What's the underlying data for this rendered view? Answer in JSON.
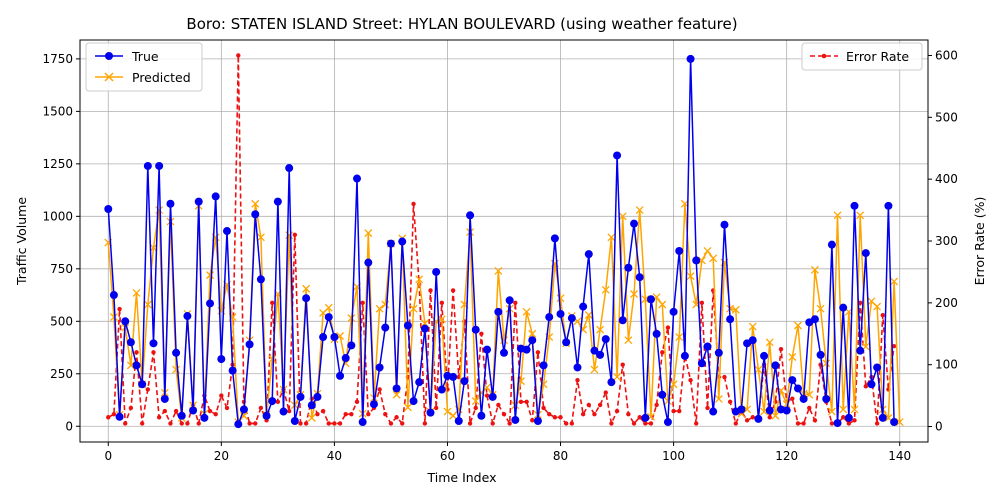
{
  "chart_data": {
    "type": "line",
    "title": "Boro: STATEN ISLAND Street: HYLAN BOULEVARD (using weather feature)",
    "xlabel": "Time Index",
    "ylabel_left": "Traffic Volume",
    "ylabel_right": "Error Rate (%)",
    "xlim": [
      -5,
      145
    ],
    "ylim_left": [
      -75,
      1840
    ],
    "ylim_right": [
      -25,
      625
    ],
    "xticks": [
      0,
      20,
      40,
      60,
      80,
      100,
      120,
      140
    ],
    "yticks_left": [
      0,
      250,
      500,
      750,
      1000,
      1250,
      1500,
      1750
    ],
    "yticks_right": [
      0,
      100,
      200,
      300,
      400,
      500,
      600
    ],
    "grid": true,
    "legend_left": "top-left",
    "legend_right": "top-right",
    "colors": {
      "true": "#0000ee",
      "predicted": "#ffa500",
      "error": "#ee1111"
    },
    "series": [
      {
        "name": "True",
        "style": "line-circle",
        "values": [
          1035,
          625,
          45,
          500,
          400,
          290,
          200,
          1240,
          395,
          1240,
          130,
          1060,
          350,
          50,
          525,
          75,
          1070,
          40,
          585,
          1095,
          320,
          930,
          265,
          10,
          80,
          390,
          1010,
          700,
          50,
          120,
          1070,
          70,
          1230,
          25,
          140,
          610,
          100,
          140,
          425,
          520,
          425,
          240,
          325,
          385,
          1180,
          20,
          780,
          105,
          280,
          470,
          870,
          180,
          880,
          480,
          120,
          210,
          465,
          65,
          735,
          175,
          240,
          235,
          25,
          215,
          1005,
          460,
          50,
          365,
          140,
          545,
          350,
          600,
          30,
          370,
          365,
          410,
          25,
          290,
          520,
          895,
          535,
          400,
          515,
          280,
          570,
          820,
          360,
          340,
          415,
          210,
          1290,
          505,
          755,
          965,
          710,
          40,
          605,
          440,
          150,
          20,
          545,
          835,
          335,
          1750,
          790,
          300,
          380,
          70,
          350,
          960,
          510,
          70,
          80,
          395,
          410,
          35,
          335,
          75,
          290,
          80,
          75,
          220,
          180,
          130,
          495,
          510,
          340,
          130,
          865,
          15,
          565,
          40,
          1050,
          360,
          825,
          200,
          280,
          40,
          1050,
          20
        ]
      },
      {
        "name": "Predicted",
        "style": "line-x",
        "values": [
          875,
          520,
          55,
          470,
          290,
          635,
          200,
          580,
          850,
          1030,
          160,
          975,
          270,
          40,
          535,
          100,
          1050,
          60,
          720,
          900,
          550,
          675,
          520,
          20,
          50,
          410,
          1060,
          900,
          55,
          320,
          630,
          175,
          910,
          100,
          150,
          655,
          40,
          155,
          540,
          565,
          415,
          430,
          300,
          515,
          665,
          60,
          920,
          135,
          560,
          580,
          870,
          150,
          895,
          90,
          560,
          700,
          490,
          70,
          500,
          510,
          70,
          50,
          80,
          580,
          925,
          120,
          160,
          185,
          150,
          740,
          410,
          560,
          100,
          215,
          545,
          440,
          55,
          200,
          425,
          775,
          610,
          395,
          525,
          500,
          460,
          530,
          270,
          460,
          650,
          900,
          235,
          1000,
          410,
          630,
          1030,
          605,
          45,
          615,
          580,
          120,
          200,
          425,
          1060,
          715,
          580,
          790,
          835,
          800,
          130,
          780,
          560,
          555,
          60,
          80,
          475,
          270,
          70,
          400,
          50,
          170,
          105,
          330,
          480,
          155,
          150,
          745,
          560,
          300,
          70,
          1005,
          80,
          545,
          80,
          1005,
          380,
          595,
          570,
          80,
          40,
          690,
          20
        ]
      },
      {
        "name": "Error Rate",
        "style": "dashed-dot",
        "axis": "right",
        "values": [
          15,
          20,
          190,
          5,
          30,
          120,
          5,
          60,
          120,
          15,
          25,
          5,
          25,
          5,
          5,
          35,
          5,
          50,
          25,
          20,
          50,
          30,
          100,
          600,
          40,
          5,
          5,
          30,
          10,
          200,
          40,
          60,
          25,
          310,
          5,
          5,
          45,
          20,
          25,
          5,
          5,
          5,
          20,
          20,
          40,
          200,
          20,
          30,
          60,
          20,
          5,
          15,
          5,
          80,
          360,
          230,
          5,
          220,
          30,
          200,
          60,
          220,
          80,
          170,
          5,
          30,
          150,
          50,
          5,
          35,
          20,
          5,
          200,
          40,
          40,
          10,
          120,
          30,
          20,
          15,
          15,
          5,
          5,
          75,
          20,
          35,
          20,
          35,
          55,
          5,
          25,
          100,
          20,
          5,
          15,
          5,
          5,
          35,
          120,
          160,
          25,
          25,
          115,
          75,
          5,
          200,
          30,
          220,
          80,
          80,
          40,
          5,
          25,
          10,
          15,
          15,
          100,
          15,
          40,
          125,
          40,
          45,
          5,
          5,
          30,
          10,
          100,
          40,
          5,
          5,
          15,
          5,
          10,
          200,
          65,
          80,
          5,
          180,
          60,
          130
        ]
      }
    ]
  }
}
